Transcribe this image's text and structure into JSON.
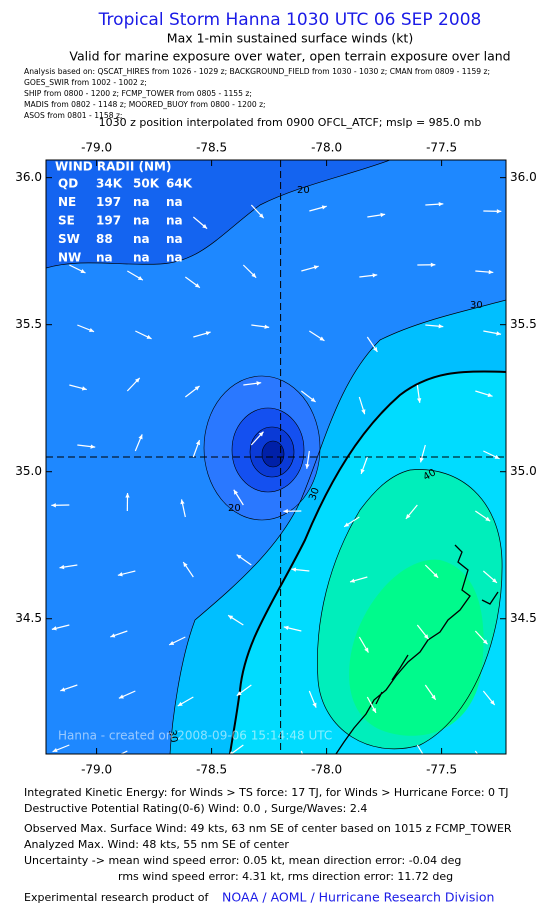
{
  "header": {
    "title": "Tropical Storm Hanna 1030 UTC 06 SEP 2008",
    "subtitle": "Max 1-min sustained surface winds (kt)",
    "valid": "Valid for marine exposure over water, open terrain exposure over land",
    "analysis_lines": [
      "Analysis based on:  QSCAT_HIRES from 1026 - 1029 z;  BACKGROUND_FIELD from 1030 - 1030 z;  CMAN from 0809 - 1159 z;",
      "GOES_SWIR from 1002 - 1002 z;",
      "SHIP from 0800 - 1200 z;  FCMP_TOWER from 0805 - 1155 z;",
      "MADIS from 0802 - 1148 z;  MOORED_BUOY from 0800 - 1200 z;",
      "ASOS from 0801 - 1158 z;"
    ],
    "position": "1030 z position interpolated from 0900 OFCL_ATCF; mslp = 985.0 mb"
  },
  "map": {
    "xlim": [
      -79.22,
      -77.22
    ],
    "ylim": [
      34.04,
      36.06
    ],
    "xticks": [
      {
        "value": -79,
        "label": "-79.0"
      },
      {
        "value": -78.5,
        "label": "-78.5"
      },
      {
        "value": -78,
        "label": "-78.0"
      },
      {
        "value": -77.5,
        "label": "-77.5"
      }
    ],
    "yticks": [
      {
        "value": 36,
        "label": "36.0"
      },
      {
        "value": 35.5,
        "label": "35.5"
      },
      {
        "value": 35,
        "label": "35.0"
      },
      {
        "value": 34.5,
        "label": "34.5"
      }
    ],
    "center": [
      -78.2,
      35.05
    ],
    "wind_radii": {
      "title": "WIND RADII (NM)",
      "rows": [
        [
          "QD",
          "34K",
          "50K",
          "64K"
        ],
        [
          "NE",
          "197",
          "na",
          "na"
        ],
        [
          "SE",
          "197",
          "na",
          "na"
        ],
        [
          "SW",
          "88",
          "na",
          "na"
        ],
        [
          "NW",
          "na",
          "na",
          "na"
        ]
      ]
    },
    "contour_labels": [
      "20",
      "30",
      "20",
      "30",
      "40",
      "30"
    ],
    "credit": "Hanna - created on 2008-09-06 15:14:48 UTC"
  },
  "footer": {
    "lines": [
      "Integrated Kinetic Energy:  for Winds > TS force: 17 TJ,  for Winds > Hurricane Force: 0 TJ",
      "Destructive Potential Rating(0-6)   Wind: 0.0 , Surge/Waves: 2.4",
      "Observed Max. Surface Wind: 49 kts, 63 nm SE of center based on 1015 z FCMP_TOWER",
      "Analyzed Max. Wind: 48 kts, 55 nm SE of center",
      "Uncertainty -> mean wind speed error: 0.05 kt,   mean direction error:  -0.04 deg",
      "rms wind speed error: 4.31 kt,   rms direction error: 11.72 deg"
    ],
    "product": "Experimental research product of",
    "link": "NOAA / AOML / Hurricane Research Division"
  }
}
